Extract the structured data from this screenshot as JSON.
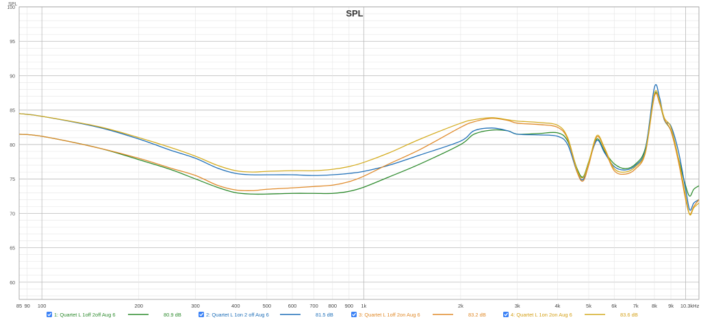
{
  "chart_data": {
    "type": "line",
    "title": "SPL",
    "ylabel": "SPL",
    "xlabel": "",
    "x_scale": "log",
    "xlim": [
      85,
      11000
    ],
    "ylim": [
      57.5,
      100
    ],
    "grid": true,
    "y_ticks": [
      60,
      65,
      70,
      75,
      80,
      85,
      90,
      95,
      100
    ],
    "x_ticks": [
      {
        "value": 85,
        "label": "85"
      },
      {
        "value": 90,
        "label": "90"
      },
      {
        "value": 100,
        "label": "100"
      },
      {
        "value": 200,
        "label": "200"
      },
      {
        "value": 300,
        "label": "300"
      },
      {
        "value": 400,
        "label": "400"
      },
      {
        "value": 500,
        "label": "500"
      },
      {
        "value": 600,
        "label": "600"
      },
      {
        "value": 700,
        "label": "700"
      },
      {
        "value": 800,
        "label": "800"
      },
      {
        "value": 900,
        "label": "900"
      },
      {
        "value": 1000,
        "label": "1k"
      },
      {
        "value": 2000,
        "label": "2k"
      },
      {
        "value": 3000,
        "label": "3k"
      },
      {
        "value": 4000,
        "label": "4k"
      },
      {
        "value": 5000,
        "label": "5k"
      },
      {
        "value": 6000,
        "label": "6k"
      },
      {
        "value": 7000,
        "label": "7k"
      },
      {
        "value": 8000,
        "label": "8k"
      },
      {
        "value": 9000,
        "label": "9k"
      },
      {
        "value": 10300,
        "label": "10.3kHz"
      }
    ],
    "series": [
      {
        "name": "1: Quartet L 1off 2off Aug 6",
        "value_label": "80.9 dB",
        "color": "#2e8b2e",
        "label_color": "#2e8b2e",
        "x": [
          85,
          100,
          150,
          200,
          250,
          300,
          350,
          400,
          450,
          500,
          600,
          700,
          800,
          900,
          1000,
          1200,
          1500,
          2000,
          2200,
          2500,
          2800,
          3000,
          3500,
          4000,
          4300,
          4600,
          4800,
          5000,
          5300,
          5600,
          6000,
          6500,
          7000,
          7500,
          8000,
          8300,
          8600,
          9000,
          9500,
          10000,
          10300,
          10600,
          11000
        ],
        "y": [
          81.5,
          81.2,
          79.5,
          77.8,
          76.4,
          75.0,
          73.8,
          73.0,
          72.8,
          72.8,
          72.9,
          72.9,
          72.9,
          73.2,
          73.8,
          75.3,
          77.2,
          80.0,
          81.5,
          82.1,
          82.0,
          81.5,
          81.6,
          81.7,
          80.5,
          76.5,
          75.3,
          77.5,
          80.8,
          79.0,
          77.2,
          76.5,
          77.2,
          79.5,
          87.2,
          86.0,
          83.5,
          82.0,
          78.0,
          74.0,
          72.5,
          73.5,
          74.0
        ]
      },
      {
        "name": "2: Quartet L 1on 2 off Aug 6",
        "value_label": "81.5 dB",
        "color": "#1f6fb8",
        "label_color": "#1f6fb8",
        "x": [
          85,
          100,
          150,
          200,
          250,
          300,
          350,
          400,
          450,
          500,
          600,
          700,
          800,
          900,
          1000,
          1200,
          1500,
          2000,
          2200,
          2500,
          2800,
          3000,
          3500,
          4000,
          4300,
          4600,
          4800,
          5000,
          5300,
          5600,
          6000,
          6500,
          7000,
          7500,
          8000,
          8300,
          8600,
          9000,
          9500,
          10000,
          10300,
          10600,
          11000
        ],
        "y": [
          84.5,
          84.1,
          82.5,
          80.8,
          79.2,
          78.0,
          76.6,
          75.8,
          75.6,
          75.6,
          75.6,
          75.5,
          75.6,
          75.8,
          76.1,
          77.0,
          78.5,
          80.5,
          82.0,
          82.4,
          82.0,
          81.5,
          81.4,
          81.2,
          80.0,
          76.0,
          74.9,
          77.3,
          80.6,
          78.8,
          76.8,
          76.3,
          77.0,
          79.3,
          88.3,
          86.8,
          83.5,
          82.7,
          79.0,
          73.5,
          70.5,
          71.5,
          72.0
        ]
      },
      {
        "name": "3: Quartet L 1off 2on Aug 6",
        "value_label": "83.2 dB",
        "color": "#e08a2a",
        "label_color": "#e08a2a",
        "x": [
          85,
          100,
          150,
          200,
          250,
          300,
          350,
          400,
          450,
          500,
          600,
          700,
          800,
          900,
          1000,
          1200,
          1500,
          2000,
          2200,
          2500,
          2800,
          3000,
          3500,
          4000,
          4300,
          4600,
          4800,
          5000,
          5300,
          5600,
          6000,
          6500,
          7000,
          7500,
          8000,
          8300,
          8600,
          9000,
          9500,
          10000,
          10300,
          10600,
          11000
        ],
        "y": [
          81.5,
          81.2,
          79.5,
          78.0,
          76.6,
          75.5,
          74.1,
          73.4,
          73.3,
          73.5,
          73.7,
          73.9,
          74.1,
          74.6,
          75.4,
          77.2,
          79.3,
          82.5,
          83.3,
          83.8,
          83.5,
          83.1,
          82.9,
          82.5,
          80.8,
          76.0,
          74.7,
          77.0,
          81.1,
          79.3,
          76.2,
          75.7,
          76.5,
          78.8,
          87.0,
          86.0,
          83.6,
          82.0,
          77.5,
          72.0,
          69.9,
          71.0,
          72.0
        ]
      },
      {
        "name": "4: Quartet  L 1on 2on Aug 6",
        "value_label": "83.6 dB",
        "color": "#d4ac20",
        "label_color": "#d4a017",
        "x": [
          85,
          100,
          150,
          200,
          250,
          300,
          350,
          400,
          450,
          500,
          600,
          700,
          800,
          900,
          1000,
          1200,
          1500,
          2000,
          2200,
          2500,
          2800,
          3000,
          3500,
          4000,
          4300,
          4600,
          4800,
          5000,
          5300,
          5600,
          6000,
          6500,
          7000,
          7500,
          8000,
          8300,
          8600,
          9000,
          9500,
          10000,
          10300,
          10600,
          11000
        ],
        "y": [
          84.5,
          84.1,
          82.6,
          81.0,
          79.6,
          78.3,
          77.0,
          76.2,
          76.0,
          76.1,
          76.2,
          76.2,
          76.4,
          76.8,
          77.4,
          78.8,
          80.8,
          83.1,
          83.6,
          83.9,
          83.6,
          83.4,
          83.2,
          82.8,
          81.0,
          76.3,
          75.2,
          77.4,
          81.3,
          79.5,
          76.5,
          76.0,
          76.8,
          79.0,
          87.4,
          86.3,
          83.8,
          82.5,
          78.0,
          72.5,
          69.8,
          70.8,
          71.5
        ]
      }
    ]
  }
}
